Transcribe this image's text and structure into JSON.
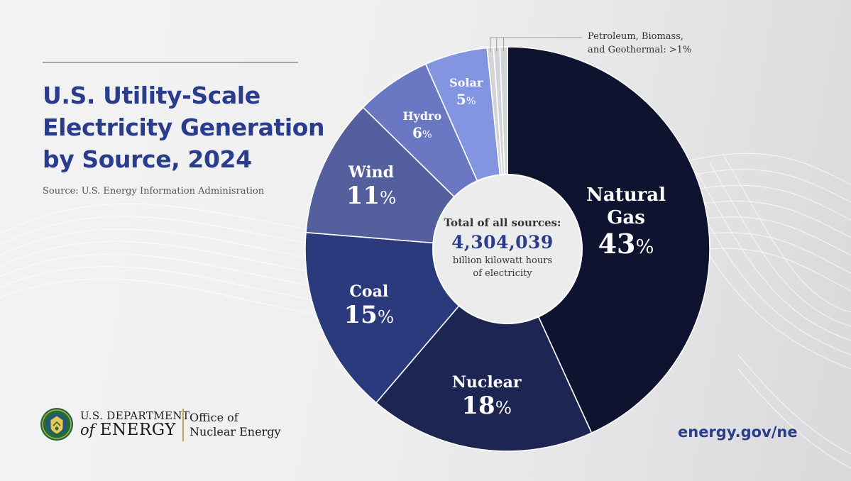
{
  "header": {
    "title_lines": [
      "U.S. Utility-Scale",
      "Electricity Generation",
      "by Source, 2024"
    ],
    "source": "Source: U.S. Energy Information Adminisration"
  },
  "chart_data": {
    "type": "pie",
    "title": "U.S. Utility-Scale Electricity Generation by Source, 2024",
    "unit": "%",
    "slices": [
      {
        "name_lines": [
          "Natural",
          "Gas"
        ],
        "name": "Natural Gas",
        "value": 43,
        "color": "#0e1330"
      },
      {
        "name_lines": [
          "Nuclear"
        ],
        "name": "Nuclear",
        "value": 18,
        "color": "#1d2553"
      },
      {
        "name_lines": [
          "Coal"
        ],
        "name": "Coal",
        "value": 15,
        "color": "#2b3a7c"
      },
      {
        "name_lines": [
          "Wind"
        ],
        "name": "Wind",
        "value": 11,
        "color": "#545f9e"
      },
      {
        "name_lines": [
          "Hydro"
        ],
        "name": "Hydro",
        "value": 6,
        "color": "#6a77c2"
      },
      {
        "name_lines": [
          "Solar"
        ],
        "name": "Solar",
        "value": 5,
        "color": "#8394e0"
      },
      {
        "name_lines": [],
        "name": "Petroleum",
        "value": 0.5,
        "color": "#d4d4d6"
      },
      {
        "name_lines": [],
        "name": "Biomass",
        "value": 0.5,
        "color": "#d4d4d6"
      },
      {
        "name_lines": [],
        "name": "Geothermal",
        "value": 0.6,
        "color": "#d4d4d6"
      }
    ],
    "callout": [
      "Petroleum, Biomass,",
      "and Geothermal: >1%"
    ],
    "center": {
      "label": "Total of all sources:",
      "value": "4,304,039",
      "unit_lines": [
        "billion kilowatt hours",
        "of electricity"
      ]
    }
  },
  "footer": {
    "agency_top": "U.S. DEPARTMENT",
    "agency_of": "of",
    "agency_energy": "ENERGY",
    "office_lines": [
      "Office of",
      "Nuclear Energy"
    ],
    "url": "energy.gov/ne"
  },
  "colors": {
    "accent": "#2a3d8c",
    "seal_green": "#1f6b3a",
    "seal_gold": "#c8a24a"
  }
}
